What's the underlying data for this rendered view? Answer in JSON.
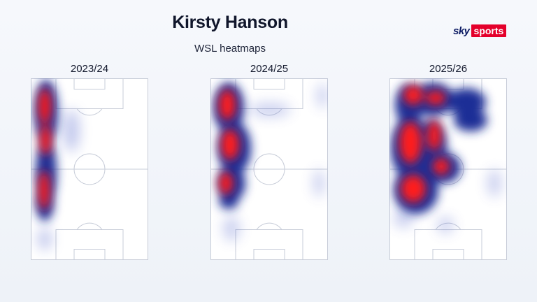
{
  "header": {
    "title": "Kirsty Hanson",
    "subtitle": "WSL heatmaps"
  },
  "brand": {
    "sky": "sky",
    "sports": "sports",
    "sports_bg": "#e4002b",
    "sky_color": "#0b1a63"
  },
  "seasons": [
    {
      "label": "2023/24"
    },
    {
      "label": "2024/25"
    },
    {
      "label": "2025/26"
    }
  ],
  "colors": {
    "heat_hot": "#ff1a1a",
    "heat_cold": "#1f2f96",
    "pitch_line": "#c7ccd8"
  }
}
